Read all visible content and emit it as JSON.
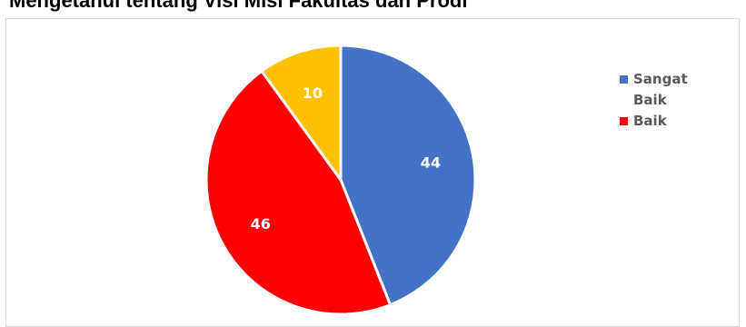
{
  "chart_data": {
    "type": "pie",
    "title": "Mengetahui tentang Visi Misi Fakultas dan Prodi",
    "slices": [
      {
        "name": "Sangat Baik",
        "value": 44,
        "color": "#4472C4"
      },
      {
        "name": "Baik",
        "value": 46,
        "color": "#FF0000"
      },
      {
        "name": "",
        "value": 10,
        "color": "#FFC000"
      }
    ],
    "data_labels": true,
    "legend": {
      "placement": "right",
      "entries": [
        "Sangat Baik",
        "Baik"
      ]
    }
  }
}
